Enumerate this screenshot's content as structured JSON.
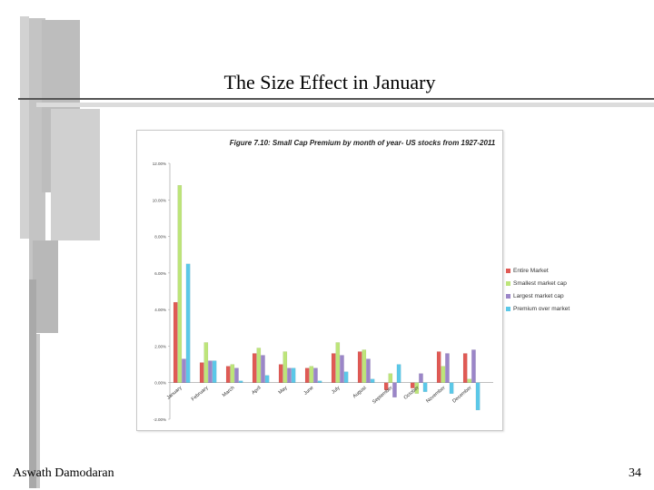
{
  "slide": {
    "title": "The Size Effect in January",
    "footer_author": "Aswath Damodaran",
    "page_number": "34"
  },
  "colors": {
    "series": [
      "#e05a55",
      "#bde57a",
      "#9b86c8",
      "#5bc8e8"
    ],
    "decor": "#c6c6c6",
    "decor_dark": "#a9a9a9"
  },
  "chart_data": {
    "type": "bar",
    "title": "Figure 7.10: Small Cap Premium by month of year- US stocks from 1927-2011",
    "categories": [
      "January",
      "February",
      "March",
      "April",
      "May",
      "June",
      "July",
      "August",
      "September",
      "October",
      "November",
      "December"
    ],
    "series": [
      {
        "name": "Entire Market",
        "values": [
          4.4,
          1.1,
          0.9,
          1.6,
          1.0,
          0.8,
          1.6,
          1.7,
          -0.4,
          -0.3,
          1.7,
          1.6
        ]
      },
      {
        "name": "Smallest market cap",
        "values": [
          10.8,
          2.2,
          1.0,
          1.9,
          1.7,
          0.9,
          2.2,
          1.8,
          0.5,
          -0.6,
          0.9,
          0.2
        ]
      },
      {
        "name": "Largest market cap",
        "values": [
          1.3,
          1.2,
          0.8,
          1.5,
          0.8,
          0.8,
          1.5,
          1.3,
          -0.8,
          0.5,
          1.6,
          1.8
        ]
      },
      {
        "name": "Premium over market",
        "values": [
          6.5,
          1.2,
          0.1,
          0.4,
          0.8,
          0.1,
          0.6,
          0.2,
          1.0,
          -0.5,
          -0.6,
          -1.5
        ]
      }
    ],
    "ylim": [
      -2,
      12
    ],
    "yticks": [
      "-2.00%",
      "0.00%",
      "2.00%",
      "4.00%",
      "6.00%",
      "8.00%",
      "10.00%",
      "12.00%"
    ],
    "grid": false,
    "legend_position": "right"
  }
}
